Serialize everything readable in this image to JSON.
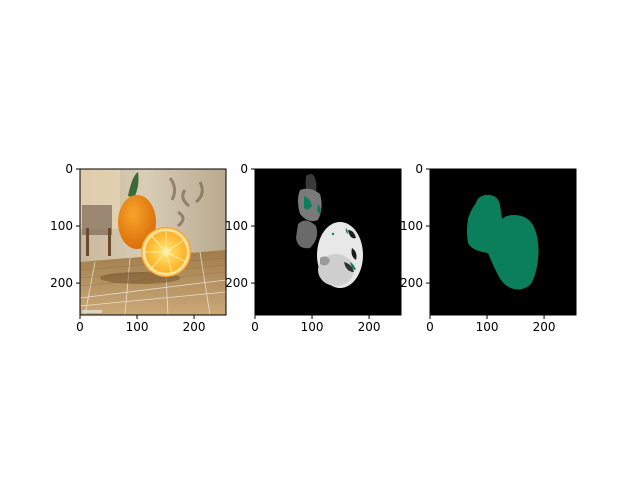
{
  "chart_data": [
    {
      "type": "image",
      "title": "",
      "xlabel": "",
      "ylabel": "",
      "xlim": [
        0,
        256
      ],
      "ylim": [
        256,
        0
      ],
      "xticks": [
        0,
        100,
        200
      ],
      "yticks": [
        0,
        100,
        200
      ],
      "content": "photo of oranges"
    },
    {
      "type": "image",
      "title": "",
      "xlabel": "",
      "ylabel": "",
      "xlim": [
        0,
        256
      ],
      "ylim": [
        256,
        0
      ],
      "xticks": [
        0,
        100,
        200
      ],
      "yticks": [
        0,
        100,
        200
      ],
      "content": "grayscale segmentation map"
    },
    {
      "type": "image",
      "title": "",
      "xlabel": "",
      "ylabel": "",
      "xlim": [
        0,
        256
      ],
      "ylim": [
        256,
        0
      ],
      "xticks": [
        0,
        100,
        200
      ],
      "yticks": [
        0,
        100,
        200
      ],
      "content": "binary mask",
      "mask_color": "#0b7f5c"
    }
  ]
}
